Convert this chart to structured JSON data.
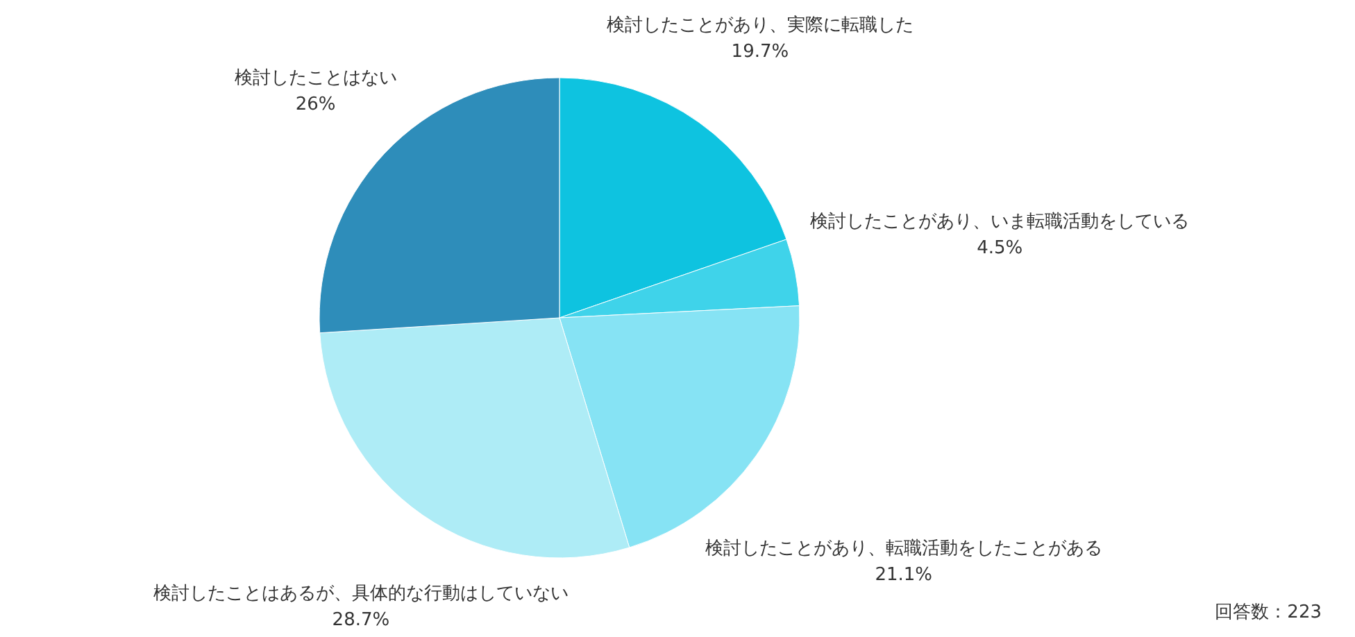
{
  "chart_data": {
    "type": "pie",
    "categories": [
      "検討したことがあり、実際に転職した",
      "検討したことがあり、いま転職活動をしている",
      "検討したことがあり、転職活動をしたことがある",
      "検討したことはあるが、具体的な行動はしていない",
      "検討したことはない"
    ],
    "values": [
      19.7,
      4.5,
      21.1,
      28.7,
      26
    ],
    "value_labels": [
      "19.7%",
      "4.5%",
      "21.1%",
      "28.7%",
      "26%"
    ],
    "colors": [
      "#0ec3e0",
      "#3fd3ea",
      "#86e3f4",
      "#aeecf6",
      "#2e8dba"
    ],
    "annotations": [
      "回答数：223"
    ]
  }
}
